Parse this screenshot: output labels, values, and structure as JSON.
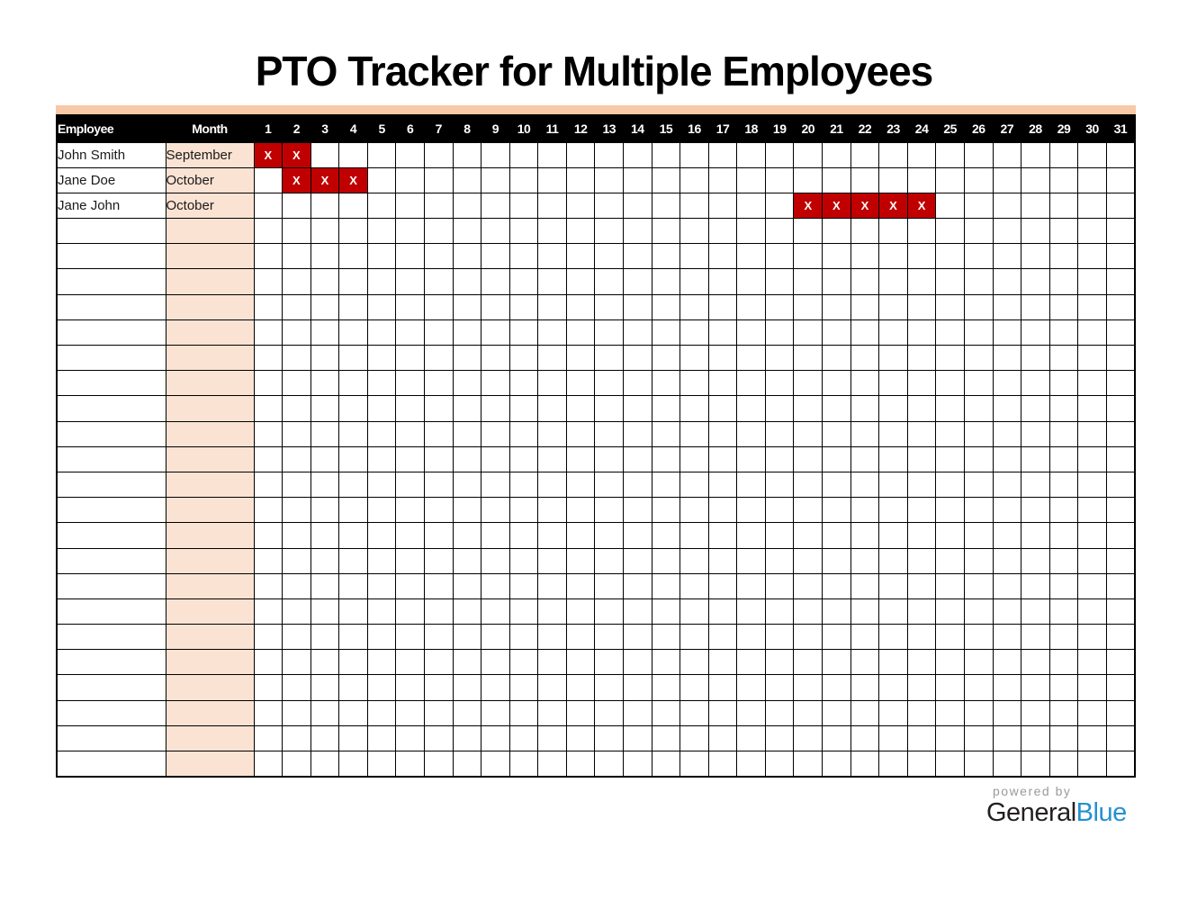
{
  "title": "PTO Tracker for Multiple Employees",
  "table": {
    "headers": {
      "employee": "Employee",
      "month": "Month"
    },
    "day_headers": [
      1,
      2,
      3,
      4,
      5,
      6,
      7,
      8,
      9,
      10,
      11,
      12,
      13,
      14,
      15,
      16,
      17,
      18,
      19,
      20,
      21,
      22,
      23,
      24,
      25,
      26,
      27,
      28,
      29,
      30,
      31
    ],
    "pto_mark": "X",
    "rows": [
      {
        "employee": "John Smith",
        "month": "September",
        "pto_days": [
          1,
          2
        ]
      },
      {
        "employee": "Jane Doe",
        "month": "October",
        "pto_days": [
          2,
          3,
          4
        ]
      },
      {
        "employee": "Jane John",
        "month": "October",
        "pto_days": [
          20,
          21,
          22,
          23,
          24
        ]
      }
    ],
    "empty_row_count": 22
  },
  "footer": {
    "powered_by": "powered by",
    "brand_general": "General",
    "brand_blue": "Blue"
  },
  "colors": {
    "accent_strip": "#f7c9a6",
    "month_column_bg": "#fbe3d4",
    "pto_cell_bg": "#c00000",
    "pto_mark_color": "#ffffff",
    "header_bg": "#000000",
    "header_text": "#ffffff",
    "grid_line": "#000000",
    "brand_blue_color": "#2590d0",
    "brand_dark_color": "#231f20",
    "powered_by_color": "#9a9a9a"
  }
}
